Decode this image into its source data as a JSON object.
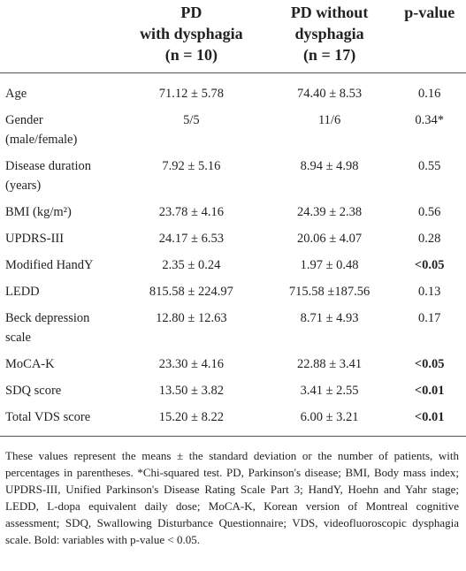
{
  "table": {
    "header": [
      [],
      [
        "PD",
        "with dysphagia",
        "(n = 10)"
      ],
      [
        "PD without",
        "dysphagia",
        "(n = 17)"
      ],
      [
        "p-value"
      ]
    ],
    "rows": [
      {
        "cells": [
          "Age",
          "71.12 ± 5.78",
          "74.40 ± 8.53",
          "0.16"
        ]
      },
      {
        "cells": [
          "Gender (male/female)",
          "5/5",
          "11/6",
          "0.34*"
        ]
      },
      {
        "cells": [
          "Disease duration (years)",
          "7.92 ± 5.16",
          "8.94 ± 4.98",
          "0.55"
        ]
      },
      {
        "cells": [
          "BMI (kg/m²)",
          "23.78 ± 4.16",
          "24.39 ± 2.38",
          "0.56"
        ]
      },
      {
        "cells": [
          "UPDRS-III",
          "24.17 ± 6.53",
          "20.06 ± 4.07",
          "0.28"
        ]
      },
      {
        "cells": [
          "Modified HandY",
          "2.35 ± 0.24",
          "1.97 ± 0.48",
          "<0.05"
        ],
        "bold": true
      },
      {
        "cells": [
          "LEDD",
          "815.58 ± 224.97",
          "715.58 ±187.56",
          "0.13"
        ]
      },
      {
        "cells": [
          "Beck depression scale",
          "12.80 ± 12.63",
          "8.71 ± 4.93",
          "0.17"
        ]
      },
      {
        "cells": [
          "MoCA-K",
          "23.30 ± 4.16",
          "22.88 ± 3.41",
          "<0.05"
        ],
        "bold": true
      },
      {
        "cells": [
          "SDQ score",
          "13.50 ± 3.82",
          "3.41 ± 2.55",
          "<0.01"
        ],
        "bold": true
      },
      {
        "cells": [
          "Total VDS score",
          "15.20 ± 8.22",
          "6.00 ± 3.21",
          "<0.01"
        ],
        "bold": true
      }
    ]
  },
  "footnote": "These values represent the means ± the standard deviation or the number of patients, with percentages in parentheses. *Chi-squared test. PD, Parkinson's disease; BMI, Body mass index; UPDRS-III, Unified Parkinson's Disease Rating Scale Part 3; HandY, Hoehn and Yahr stage; LEDD, L-dopa equivalent daily dose; MoCA-K, Korean version of Montreal cognitive assessment; SDQ, Swallowing Disturbance Questionnaire; VDS, videofluoroscopic dysphagia scale. Bold: variables with p-value < 0.05."
}
